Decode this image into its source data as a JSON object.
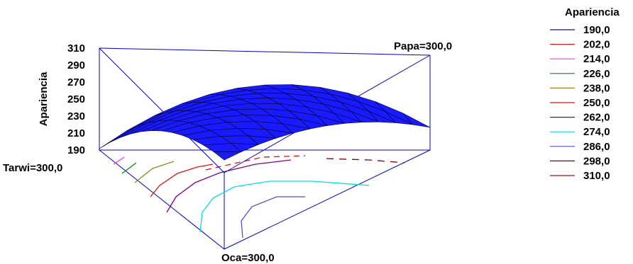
{
  "chart_data": {
    "type": "surface3d",
    "ylabel": "Apariencia",
    "zlim": [
      190,
      310
    ],
    "z_ticks": [
      "310",
      "290",
      "270",
      "250",
      "230",
      "210",
      "190"
    ],
    "vertex_labels": {
      "top_right": "Papa=300,0",
      "left": "Tarwi=300,0",
      "bottom": "Oca=300,0"
    },
    "surface_color": "#1a1aff",
    "frame_color": "#0000cc",
    "legend": {
      "title": "Apariencia",
      "entries": [
        {
          "label": "190,0",
          "color": "#1010a0"
        },
        {
          "label": "202,0",
          "color": "#e02020"
        },
        {
          "label": "214,0",
          "color": "#ff30ff"
        },
        {
          "label": "226,0",
          "color": "#108010"
        },
        {
          "label": "238,0",
          "color": "#8a8a20"
        },
        {
          "label": "250,0",
          "color": "#e01010"
        },
        {
          "label": "262,0",
          "color": "#800080"
        },
        {
          "label": "274,0",
          "color": "#00e0e0"
        },
        {
          "label": "286,0",
          "color": "#5050d0"
        },
        {
          "label": "298,0",
          "color": "#800000"
        },
        {
          "label": "310,0",
          "color": "#a01010"
        }
      ]
    }
  }
}
